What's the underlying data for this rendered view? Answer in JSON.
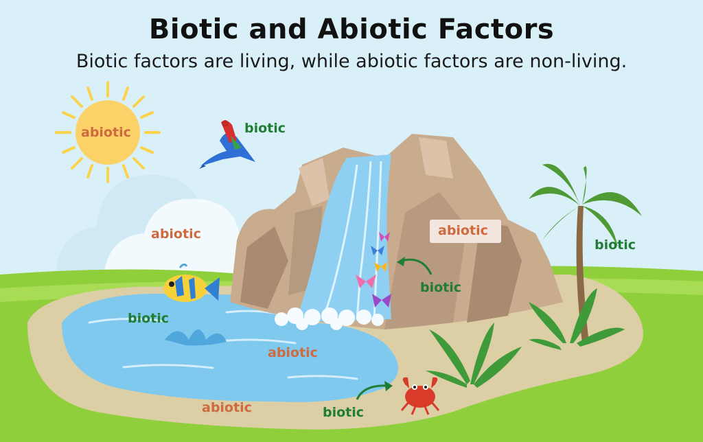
{
  "header": {
    "title": "Biotic and Abiotic Factors",
    "subtitle": "Biotic factors are living, while abiotic factors are non-living."
  },
  "labels": {
    "sun": "abiotic",
    "parrot": "biotic",
    "cloud": "abiotic",
    "rock": "abiotic",
    "palm": "biotic",
    "butterflies": "biotic",
    "fish": "biotic",
    "water": "abiotic",
    "sand": "abiotic",
    "crab": "biotic"
  },
  "colors": {
    "abiotic": "#cf6a3f",
    "biotic": "#1f7d34",
    "sky": "#d9f0f8",
    "grass": "#8fcf3c",
    "sand": "#dccfa6",
    "water": "#7fc8ee",
    "rock": "#c9ab8e",
    "sun": "#fbd268"
  }
}
